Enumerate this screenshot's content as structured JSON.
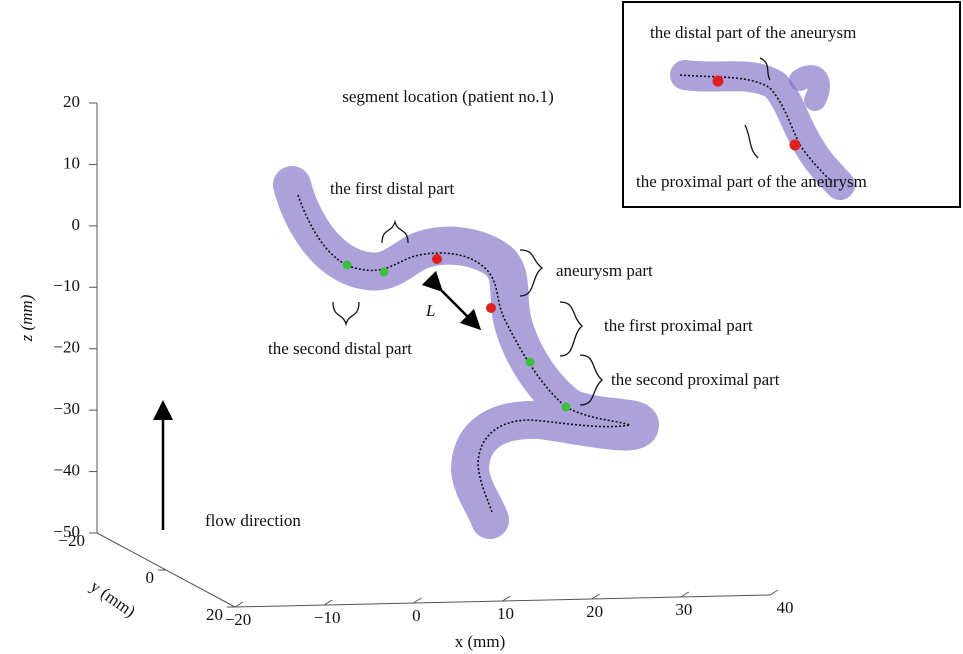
{
  "title": "segment location (patient no.1)",
  "axes": {
    "z": {
      "label": "z (mm)",
      "ticks": [
        "20",
        "10",
        "0",
        "−10",
        "−20",
        "−30",
        "−40",
        "−50"
      ]
    },
    "y": {
      "label": "y (mm)",
      "ticks": [
        "−20",
        "0",
        "20"
      ]
    },
    "x": {
      "label": "x (mm)",
      "ticks": [
        "−20",
        "−10",
        "0",
        "10",
        "20",
        "30",
        "40"
      ]
    }
  },
  "annotations": {
    "first_distal": "the first distal part",
    "second_distal": "the second distal part",
    "aneurysm": "aneurysm part",
    "first_proximal": "the first proximal part",
    "second_proximal": "the second proximal part",
    "length": "L",
    "flow": "flow direction"
  },
  "inset": {
    "distal": "the distal part of the aneurysm",
    "proximal": "the proximal part of the aneurysm"
  }
}
